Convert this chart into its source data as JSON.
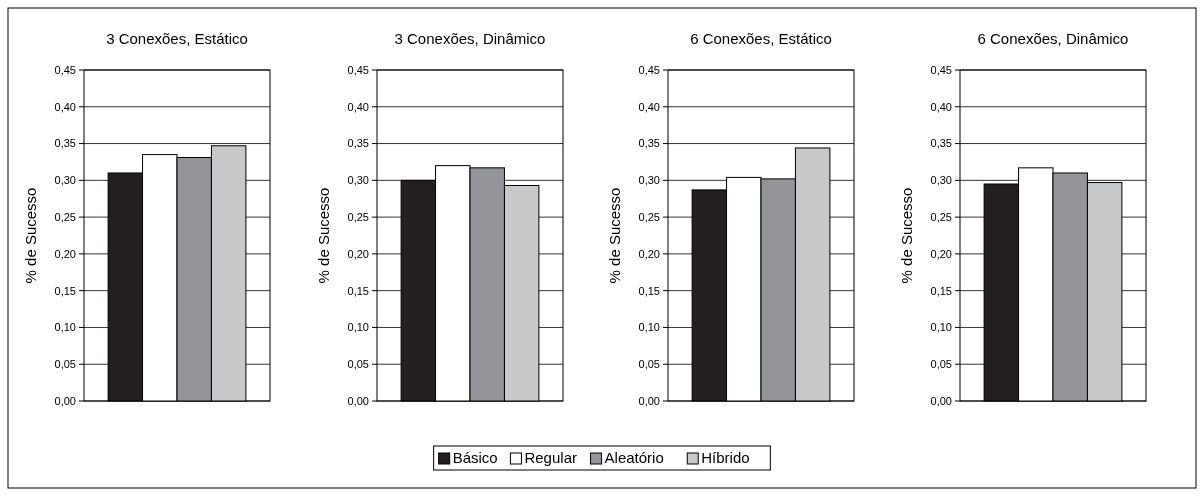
{
  "chart_data": [
    {
      "type": "bar",
      "title": "3 Conexões, Estático",
      "ylabel": "% de Sucesso",
      "categories": [
        null
      ],
      "series": [
        {
          "name": "Básico",
          "color": "#231f20",
          "values": [
            0.31
          ]
        },
        {
          "name": "Regular",
          "color": "#ffffff",
          "values": [
            0.335
          ]
        },
        {
          "name": "Aleatório",
          "color": "#939598",
          "values": [
            0.331
          ]
        },
        {
          "name": "Híbrido",
          "color": "#c7c8ca",
          "values": [
            0.347
          ]
        }
      ],
      "ylim": [
        0,
        0.45
      ],
      "yticks": [
        {
          "value": 0,
          "label": "0,00"
        },
        {
          "value": 0.05,
          "label": "0,05"
        },
        {
          "value": 0.1,
          "label": "0,10"
        },
        {
          "value": 0.15,
          "label": "0,15"
        },
        {
          "value": 0.2,
          "label": "0,20"
        },
        {
          "value": 0.25,
          "label": "0,25"
        },
        {
          "value": 0.3,
          "label": "0,30"
        },
        {
          "value": 0.35,
          "label": "0,35"
        },
        {
          "value": 0.4,
          "label": "0,40"
        },
        {
          "value": 0.45,
          "label": "0,45"
        }
      ],
      "grid": "y",
      "legend": "bottom"
    },
    {
      "type": "bar",
      "title": "3 Conexões, Dinâmico",
      "ylabel": "% de Sucesso",
      "categories": [
        null
      ],
      "series": [
        {
          "color": "#231f20",
          "values": [
            0.3
          ]
        },
        {
          "color": "#ffffff",
          "values": [
            0.32
          ]
        },
        {
          "color": "#939598",
          "values": [
            0.317
          ]
        },
        {
          "color": "#c7c8ca",
          "values": [
            0.293
          ]
        }
      ],
      "ylim": [
        0,
        0.45
      ],
      "yticks": [
        {
          "value": 0,
          "label": "0,00"
        },
        {
          "value": 0.05,
          "label": "0,05"
        },
        {
          "value": 0.1,
          "label": "0,10"
        },
        {
          "value": 0.15,
          "label": "0,15"
        },
        {
          "value": 0.2,
          "label": "0,20"
        },
        {
          "value": 0.25,
          "label": "0,25"
        },
        {
          "value": 0.3,
          "label": "0,30"
        },
        {
          "value": 0.35,
          "label": "0,35"
        },
        {
          "value": 0.4,
          "label": "0,40"
        },
        {
          "value": 0.45,
          "label": "0,45"
        }
      ],
      "grid": "y"
    },
    {
      "type": "bar",
      "title": "6 Conexões, Estático",
      "ylabel": "% de Sucesso",
      "categories": [
        null
      ],
      "series": [
        {
          "color": "#231f20",
          "values": [
            0.287
          ]
        },
        {
          "color": "#ffffff",
          "values": [
            0.304
          ]
        },
        {
          "color": "#939598",
          "values": [
            0.302
          ]
        },
        {
          "color": "#c7c8ca",
          "values": [
            0.344
          ]
        }
      ],
      "ylim": [
        0,
        0.45
      ],
      "yticks": [
        {
          "value": 0,
          "label": "0,00"
        },
        {
          "value": 0.05,
          "label": "0,05"
        },
        {
          "value": 0.1,
          "label": "0,10"
        },
        {
          "value": 0.15,
          "label": "0,15"
        },
        {
          "value": 0.2,
          "label": "0,20"
        },
        {
          "value": 0.25,
          "label": "0,25"
        },
        {
          "value": 0.3,
          "label": "0,30"
        },
        {
          "value": 0.35,
          "label": "0,35"
        },
        {
          "value": 0.4,
          "label": "0,40"
        },
        {
          "value": 0.45,
          "label": "0,45"
        }
      ],
      "grid": "y"
    },
    {
      "type": "bar",
      "title": "6 Conexões, Dinâmico",
      "ylabel": "% de Sucesso",
      "categories": [
        null
      ],
      "series": [
        {
          "color": "#231f20",
          "values": [
            0.295
          ]
        },
        {
          "color": "#ffffff",
          "values": [
            0.317
          ]
        },
        {
          "color": "#939598",
          "values": [
            0.31
          ]
        },
        {
          "color": "#c7c8ca",
          "values": [
            0.297
          ]
        }
      ],
      "ylim": [
        0,
        0.45
      ],
      "yticks": [
        {
          "value": 0,
          "label": "0,00"
        },
        {
          "value": 0.05,
          "label": "0,05"
        },
        {
          "value": 0.1,
          "label": "0,10"
        },
        {
          "value": 0.15,
          "label": "0,15"
        },
        {
          "value": 0.2,
          "label": "0,20"
        },
        {
          "value": 0.25,
          "label": "0,25"
        },
        {
          "value": 0.3,
          "label": "0,30"
        },
        {
          "value": 0.35,
          "label": "0,35"
        },
        {
          "value": 0.4,
          "label": "0,40"
        },
        {
          "value": 0.45,
          "label": "0,45"
        }
      ],
      "grid": "y"
    }
  ]
}
